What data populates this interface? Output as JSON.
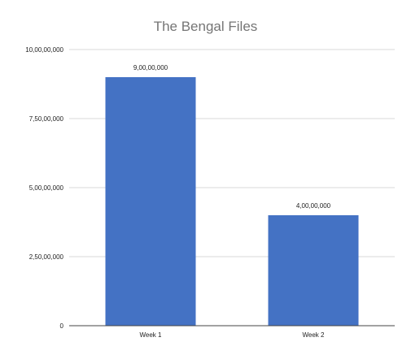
{
  "chart_data": {
    "type": "bar",
    "title": "The Bengal Files",
    "categories": [
      "Week 1",
      "Week 2"
    ],
    "values": [
      90000000,
      40000000
    ],
    "value_labels": [
      "9,00,00,000",
      "4,00,00,000"
    ],
    "ylim": [
      0,
      100000000
    ],
    "y_ticks": [
      {
        "value": 0,
        "label": "0"
      },
      {
        "value": 25000000,
        "label": "2,50,00,000"
      },
      {
        "value": 50000000,
        "label": "5,00,00,000"
      },
      {
        "value": 75000000,
        "label": "7,50,00,000"
      },
      {
        "value": 100000000,
        "label": "10,00,00,000"
      }
    ],
    "xlabel": "",
    "ylabel": "",
    "grid": true,
    "legend": "none",
    "colors": {
      "bar": "#4472c4",
      "grid": "#d9d9d9",
      "axis": "#444444",
      "title": "#757575",
      "text": "#222222"
    }
  }
}
